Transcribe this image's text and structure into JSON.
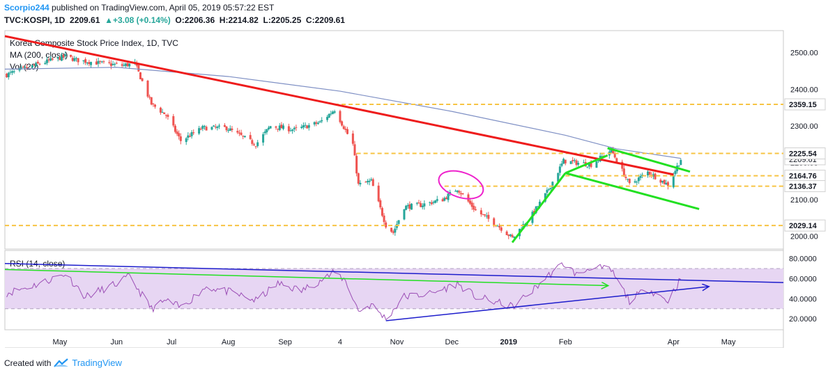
{
  "header": {
    "author": "Scorpio244",
    "published_text": "published on TradingView.com, April 05, 2019 05:57:22 EST",
    "symbol": "TVC:KOSPI, 1D",
    "last": "2209.61",
    "change": "+3.08 (+0.14%)",
    "o_label": "O:",
    "o_value": "2206.36",
    "h_label": "H:",
    "h_value": "2214.82",
    "l_label": "L:",
    "l_value": "2205.25",
    "c_label": "C:",
    "c_value": "2209.61"
  },
  "footer": {
    "created_with": "Created with",
    "brand": "TradingView"
  },
  "colors": {
    "up": "#26a69a",
    "down": "#ef5350",
    "ma": "#7e8fc4",
    "trend_red": "#ee1c1c",
    "trend_green": "#22e022",
    "level": "#f7c443",
    "rsi": "#9c4fb6",
    "rsi_band": "#e7d6f3",
    "ellipse": "#ee22cc",
    "blue": "#1d1dcc"
  },
  "chart_data": [
    {
      "type": "candlestick",
      "title": "Korea Composite Stock Price Index, 1D, TVC",
      "legend": [
        "MA (200, close)",
        "Vol (20)"
      ],
      "y_ticks": [
        "2500.00",
        "2400.00",
        "2300.00",
        "2200.00",
        "2100.00",
        "2000.00"
      ],
      "y_tick_values": [
        2500,
        2400,
        2300,
        2200,
        2100,
        2000
      ],
      "ylim": [
        1965,
        2560
      ],
      "x_labels": [
        "May",
        "Jun",
        "Jul",
        "Aug",
        "Sep",
        "4",
        "Nov",
        "Dec",
        "2019",
        "Feb",
        "Apr",
        "May"
      ],
      "x_label_bold": "2019",
      "x_range": [
        "2018-04-01",
        "2019-05-31"
      ],
      "horizontal_levels": [
        {
          "label": "2359.15",
          "value": 2359.15,
          "from": "2018-09-28"
        },
        {
          "label": "2225.54",
          "value": 2225.54,
          "from": "2018-10-10"
        },
        {
          "label": "2164.76",
          "value": 2164.76,
          "from": "2019-02-01"
        },
        {
          "label": "2136.37",
          "value": 2136.37,
          "from": "2018-11-27"
        },
        {
          "label": "2029.14",
          "value": 2029.14,
          "from": "2018-04-01"
        }
      ],
      "hidden_level_label": "2209.61",
      "key_points": [
        {
          "date": "2018-04-02",
          "close": 2440
        },
        {
          "date": "2018-04-20",
          "close": 2470
        },
        {
          "date": "2018-05-04",
          "close": 2490
        },
        {
          "date": "2018-05-10",
          "close": 2480
        },
        {
          "date": "2018-05-25",
          "close": 2470
        },
        {
          "date": "2018-06-04",
          "close": 2465
        },
        {
          "date": "2018-06-11",
          "close": 2470
        },
        {
          "date": "2018-06-20",
          "close": 2360
        },
        {
          "date": "2018-06-28",
          "close": 2330
        },
        {
          "date": "2018-07-06",
          "close": 2260
        },
        {
          "date": "2018-07-18",
          "close": 2295
        },
        {
          "date": "2018-07-31",
          "close": 2295
        },
        {
          "date": "2018-08-16",
          "close": 2250
        },
        {
          "date": "2018-08-24",
          "close": 2300
        },
        {
          "date": "2018-09-06",
          "close": 2290
        },
        {
          "date": "2018-09-20",
          "close": 2310
        },
        {
          "date": "2018-09-28",
          "close": 2345
        },
        {
          "date": "2018-10-08",
          "close": 2250
        },
        {
          "date": "2018-10-11",
          "close": 2140
        },
        {
          "date": "2018-10-18",
          "close": 2150
        },
        {
          "date": "2018-10-26",
          "close": 2030
        },
        {
          "date": "2018-10-30",
          "close": 2010
        },
        {
          "date": "2018-11-05",
          "close": 2080
        },
        {
          "date": "2018-11-14",
          "close": 2085
        },
        {
          "date": "2018-11-26",
          "close": 2100
        },
        {
          "date": "2018-12-04",
          "close": 2130
        },
        {
          "date": "2018-12-14",
          "close": 2070
        },
        {
          "date": "2018-12-26",
          "close": 2030
        },
        {
          "date": "2019-01-03",
          "close": 1995
        },
        {
          "date": "2019-01-14",
          "close": 2060
        },
        {
          "date": "2019-01-22",
          "close": 2120
        },
        {
          "date": "2019-01-31",
          "close": 2205
        },
        {
          "date": "2019-02-15",
          "close": 2195
        },
        {
          "date": "2019-02-26",
          "close": 2235
        },
        {
          "date": "2019-03-08",
          "close": 2140
        },
        {
          "date": "2019-03-18",
          "close": 2175
        },
        {
          "date": "2019-03-29",
          "close": 2140
        },
        {
          "date": "2019-04-05",
          "close": 2209.61
        }
      ],
      "ma_points": [
        {
          "date": "2018-04-01",
          "value": 2455
        },
        {
          "date": "2018-06-01",
          "value": 2460
        },
        {
          "date": "2018-08-01",
          "value": 2435
        },
        {
          "date": "2018-10-01",
          "value": 2395
        },
        {
          "date": "2018-12-01",
          "value": 2340
        },
        {
          "date": "2019-02-01",
          "value": 2275
        },
        {
          "date": "2019-03-01",
          "value": 2238
        },
        {
          "date": "2019-04-05",
          "value": 2212
        }
      ],
      "trendlines": [
        {
          "color": "red",
          "from": [
            "2018-04-01",
            2545
          ],
          "to": [
            "2019-04-01",
            2168
          ]
        },
        {
          "color": "green",
          "from": [
            "2019-01-03",
            1983
          ],
          "to": [
            "2019-02-01",
            2172
          ]
        },
        {
          "color": "green",
          "from": [
            "2019-02-01",
            2172
          ],
          "to": [
            "2019-04-15",
            2074
          ]
        },
        {
          "color": "green",
          "from": [
            "2019-02-01",
            2172
          ],
          "to": [
            "2019-02-24",
            2220
          ]
        },
        {
          "color": "green",
          "from": [
            "2019-02-24",
            2240
          ],
          "to": [
            "2019-04-10",
            2176
          ]
        }
      ]
    },
    {
      "type": "line",
      "title": "RSI (14, close)",
      "y_ticks": [
        "80.0000",
        "60.0000",
        "40.0000",
        "20.0000"
      ],
      "y_tick_values": [
        80,
        60,
        40,
        20
      ],
      "ylim": [
        9,
        88
      ],
      "band": [
        30,
        70
      ],
      "key_points": [
        {
          "date": "2018-04-01",
          "value": 45
        },
        {
          "date": "2018-04-20",
          "value": 55
        },
        {
          "date": "2018-05-04",
          "value": 65
        },
        {
          "date": "2018-05-15",
          "value": 42
        },
        {
          "date": "2018-06-01",
          "value": 55
        },
        {
          "date": "2018-06-08",
          "value": 62
        },
        {
          "date": "2018-06-20",
          "value": 30
        },
        {
          "date": "2018-06-28",
          "value": 38
        },
        {
          "date": "2018-07-06",
          "value": 31
        },
        {
          "date": "2018-07-20",
          "value": 52
        },
        {
          "date": "2018-08-03",
          "value": 46
        },
        {
          "date": "2018-08-16",
          "value": 38
        },
        {
          "date": "2018-08-28",
          "value": 55
        },
        {
          "date": "2018-09-10",
          "value": 48
        },
        {
          "date": "2018-09-28",
          "value": 66
        },
        {
          "date": "2018-10-04",
          "value": 58
        },
        {
          "date": "2018-10-11",
          "value": 28
        },
        {
          "date": "2018-10-18",
          "value": 34
        },
        {
          "date": "2018-10-26",
          "value": 20
        },
        {
          "date": "2018-11-05",
          "value": 42
        },
        {
          "date": "2018-11-20",
          "value": 45
        },
        {
          "date": "2018-12-04",
          "value": 55
        },
        {
          "date": "2018-12-14",
          "value": 42
        },
        {
          "date": "2018-12-26",
          "value": 36
        },
        {
          "date": "2019-01-03",
          "value": 32
        },
        {
          "date": "2019-01-14",
          "value": 48
        },
        {
          "date": "2019-01-22",
          "value": 62
        },
        {
          "date": "2019-01-31",
          "value": 75
        },
        {
          "date": "2019-02-08",
          "value": 63
        },
        {
          "date": "2019-02-15",
          "value": 72
        },
        {
          "date": "2019-02-26",
          "value": 68
        },
        {
          "date": "2019-03-08",
          "value": 38
        },
        {
          "date": "2019-03-18",
          "value": 50
        },
        {
          "date": "2019-03-29",
          "value": 38
        },
        {
          "date": "2019-04-05",
          "value": 60
        }
      ],
      "trendlines": [
        {
          "color": "blue",
          "from": [
            "2018-04-01",
            75
          ],
          "to": [
            "2019-05-31",
            56
          ]
        },
        {
          "color": "green",
          "from": [
            "2018-04-01",
            69
          ],
          "to": [
            "2019-02-24",
            53
          ],
          "arrow": true
        },
        {
          "color": "blue",
          "from": [
            "2018-10-26",
            18
          ],
          "to": [
            "2019-04-20",
            52
          ],
          "arrow": true
        }
      ]
    }
  ]
}
